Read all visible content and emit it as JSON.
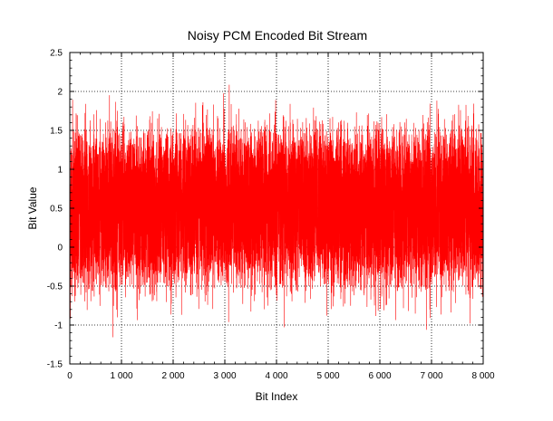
{
  "chart_data": {
    "type": "line",
    "title": "Noisy PCM Encoded Bit Stream",
    "xlabel": "Bit Index",
    "ylabel": "Bit Value",
    "xlim": [
      0,
      8000
    ],
    "ylim": [
      -1.5,
      2.5
    ],
    "x_ticks": [
      0,
      1000,
      2000,
      3000,
      4000,
      5000,
      6000,
      7000,
      8000
    ],
    "x_tick_labels": [
      "0",
      "1 000",
      "2 000",
      "3 000",
      "4 000",
      "5 000",
      "6 000",
      "7 000",
      "8 000"
    ],
    "y_ticks": [
      -1.5,
      -1,
      -0.5,
      0,
      0.5,
      1,
      1.5,
      2,
      2.5
    ],
    "y_tick_labels": [
      "-1.5",
      "-1",
      "-0.5",
      "0",
      "0.5",
      "1",
      "1.5",
      "2",
      "2.5"
    ],
    "grid": true,
    "grid_style": "dotted",
    "series_color": "#ff0000",
    "series": [
      {
        "name": "",
        "n_points": 8000,
        "levels": [
          0,
          1
        ],
        "noise_std": 0.3,
        "approx_min": -1.45,
        "approx_max": 2.25
      }
    ]
  }
}
